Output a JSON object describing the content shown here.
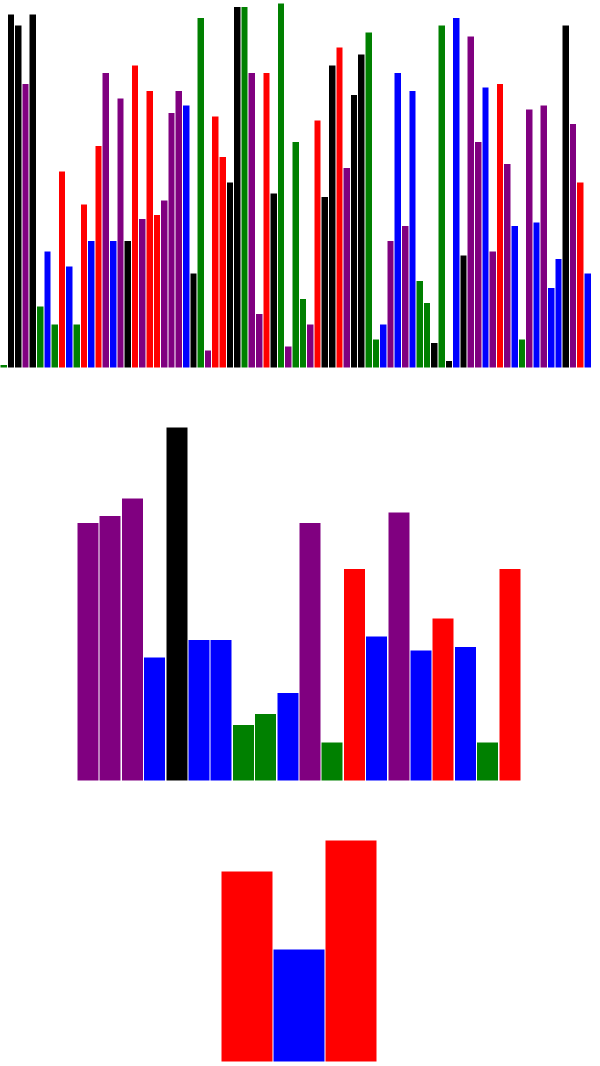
{
  "chart_data": [
    {
      "type": "bar",
      "ylim": [
        0,
        100
      ],
      "grid": false,
      "legend": "none",
      "colors": {
        "k": "#000000",
        "p": "#800080",
        "r": "#ff0000",
        "b": "#0000ff",
        "g": "#008000"
      },
      "values": [
        1,
        97,
        94,
        78,
        97,
        17,
        32,
        12,
        54,
        28,
        12,
        45,
        35,
        61,
        81,
        35,
        74,
        35,
        83,
        41,
        76,
        42,
        46,
        70,
        76,
        72,
        26,
        96,
        5,
        69,
        58,
        51,
        99,
        99,
        81,
        15,
        81,
        48,
        100,
        6,
        62,
        19,
        12,
        68,
        47,
        83,
        88,
        55,
        75,
        86,
        92,
        8,
        12,
        35,
        81,
        39,
        76,
        24,
        18,
        7,
        94,
        2,
        96,
        31,
        91,
        62,
        77,
        32,
        78,
        56,
        39,
        8,
        71,
        40,
        72,
        22,
        30,
        94,
        67,
        51,
        26
      ],
      "bar_colors": [
        "g",
        "k",
        "k",
        "p",
        "k",
        "g",
        "b",
        "g",
        "r",
        "b",
        "g",
        "r",
        "b",
        "r",
        "p",
        "b",
        "p",
        "k",
        "r",
        "p",
        "r",
        "r",
        "p",
        "p",
        "p",
        "b",
        "k",
        "g",
        "p",
        "r",
        "r",
        "k",
        "k",
        "g",
        "p",
        "p",
        "r",
        "k",
        "g",
        "p",
        "g",
        "g",
        "p",
        "r",
        "k",
        "k",
        "r",
        "p",
        "k",
        "k",
        "g",
        "g",
        "b",
        "p",
        "b",
        "p",
        "b",
        "g",
        "g",
        "k",
        "g",
        "k",
        "b",
        "k",
        "p",
        "p",
        "b",
        "p",
        "r",
        "p",
        "b",
        "g",
        "p",
        "b",
        "p",
        "b",
        "b",
        "k",
        "p",
        "r",
        "b"
      ]
    },
    {
      "type": "bar",
      "ylim": [
        0,
        100
      ],
      "grid": false,
      "legend": "none",
      "colors": {
        "k": "#000000",
        "p": "#800080",
        "r": "#ff0000",
        "b": "#0000ff",
        "g": "#008000"
      },
      "values": [
        73,
        75,
        80,
        35,
        100,
        40,
        40,
        16,
        19,
        25,
        73,
        11,
        60,
        41,
        76,
        37,
        46,
        38,
        11,
        60
      ],
      "bar_colors": [
        "p",
        "p",
        "p",
        "b",
        "k",
        "b",
        "b",
        "g",
        "g",
        "b",
        "p",
        "g",
        "r",
        "b",
        "p",
        "b",
        "r",
        "b",
        "g",
        "r"
      ]
    },
    {
      "type": "bar",
      "ylim": [
        0,
        100
      ],
      "grid": false,
      "legend": "none",
      "colors": {
        "k": "#000000",
        "p": "#800080",
        "r": "#ff0000",
        "b": "#0000ff",
        "g": "#008000"
      },
      "values": [
        86,
        51,
        100
      ],
      "bar_colors": [
        "r",
        "b",
        "r"
      ]
    }
  ]
}
